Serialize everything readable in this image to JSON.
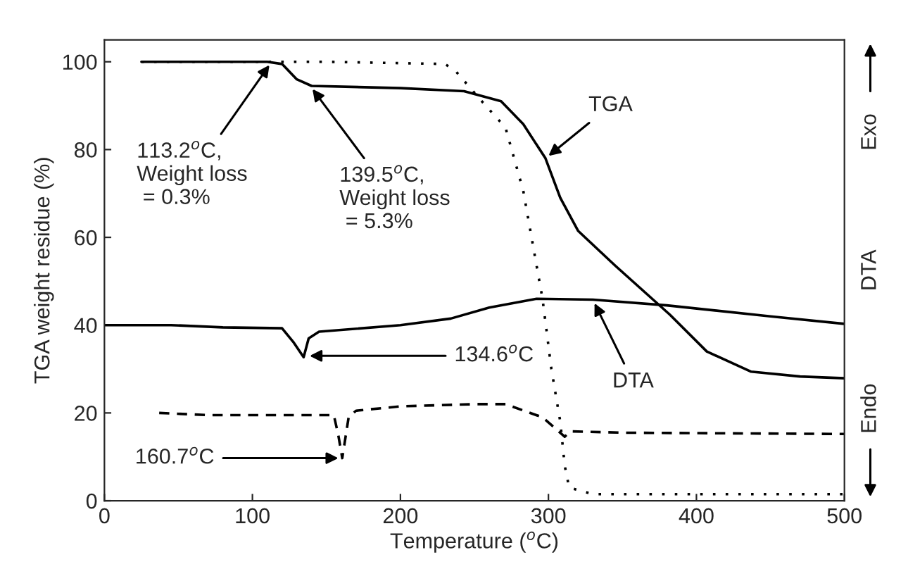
{
  "chart_data": {
    "type": "line",
    "xlabel": "Temperature ($^{o}$C)",
    "ylabel": "TGA weight residue (%)",
    "xlim": [
      0,
      500
    ],
    "ylim": [
      0,
      105
    ],
    "xticks": [
      0,
      100,
      200,
      300,
      400,
      500
    ],
    "yticks": [
      0,
      20,
      40,
      60,
      80,
      100
    ],
    "grid": false,
    "legend": false,
    "marker": "none",
    "series": [
      {
        "color": "#000000",
        "line_style": "solid",
        "x": [
          25,
          60,
          110,
          120,
          130,
          140,
          200,
          243,
          268,
          283,
          298,
          308,
          320,
          345,
          382,
          407,
          437,
          470,
          500
        ],
        "values": [
          100,
          100,
          100,
          99.5,
          96,
          94.5,
          94,
          93.3,
          91,
          85.8,
          78,
          69,
          61.5,
          53.6,
          42.4,
          34,
          29.4,
          28.3,
          27.9
        ]
      },
      {
        "color": "#000000",
        "line_style": "dotted",
        "x": [
          25,
          150,
          230,
          237,
          255,
          271,
          283,
          296,
          302,
          308,
          311,
          314,
          330,
          500
        ],
        "values": [
          100,
          100,
          99.5,
          98,
          91,
          85,
          70.6,
          46,
          30,
          18,
          8,
          3,
          1.5,
          1.5
        ]
      },
      {
        "color": "#000000",
        "line_style": "solid",
        "x": [
          0,
          45,
          80,
          120,
          128,
          134.6,
          138,
          145,
          200,
          234,
          260,
          292,
          330,
          380,
          450,
          500
        ],
        "values": [
          40,
          40,
          39.5,
          39.3,
          36,
          32.7,
          37,
          38.5,
          40,
          41.5,
          44,
          46,
          45.8,
          44.5,
          42,
          40.3
        ]
      },
      {
        "color": "#000000",
        "line_style": "dashed",
        "x": [
          37,
          70,
          155,
          158,
          160.7,
          165,
          170,
          200,
          250,
          271,
          296,
          311,
          315,
          350,
          500
        ],
        "values": [
          20,
          19.5,
          19.5,
          15,
          9.7,
          19,
          20.5,
          21.5,
          22,
          22,
          19,
          14.6,
          15.8,
          15.5,
          15.2
        ]
      }
    ],
    "annotations": [
      {
        "text": "113.2$^{o}$C,\nWeight loss\n = 0.3%",
        "x": 113,
        "y": 100
      },
      {
        "text": "139.5$^{o}$C,\nWeight loss\n = 5.3%",
        "x": 139,
        "y": 94.5
      },
      {
        "text": "TGA",
        "x": 298,
        "y": 78
      },
      {
        "text": "134.6$^{o}$C",
        "x": 136,
        "y": 33
      },
      {
        "text": "DTA",
        "x": 330,
        "y": 45.8
      },
      {
        "text": "160.7$^{o}$C",
        "x": 160.7,
        "y": 9.7
      },
      "Exo",
      "DTA",
      "Endo"
    ]
  }
}
